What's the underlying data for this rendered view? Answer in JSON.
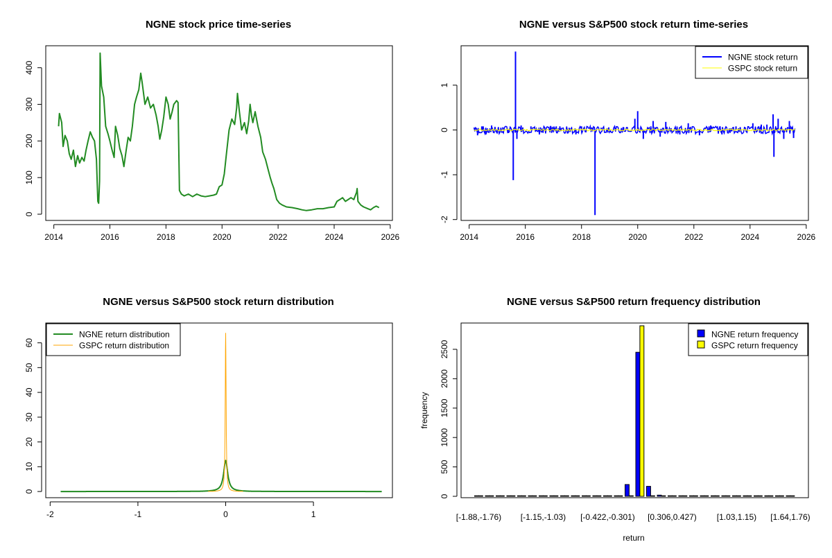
{
  "chart_data": [
    {
      "type": "line",
      "title": "NGNE stock price time-series",
      "xlabel": "",
      "ylabel": "",
      "xlim": [
        2014,
        2026
      ],
      "ylim": [
        0,
        450
      ],
      "x_ticks": [
        "2014",
        "2016",
        "2018",
        "2020",
        "2022",
        "2024",
        "2026"
      ],
      "y_ticks": [
        "0",
        "100",
        "200",
        "300",
        "400"
      ],
      "legend": null,
      "series": [
        {
          "color": "#228B22",
          "points": [
            [
              2014.17,
              240
            ],
            [
              2014.2,
              275
            ],
            [
              2014.28,
              250
            ],
            [
              2014.33,
              185
            ],
            [
              2014.4,
              215
            ],
            [
              2014.48,
              200
            ],
            [
              2014.55,
              165
            ],
            [
              2014.62,
              150
            ],
            [
              2014.7,
              175
            ],
            [
              2014.77,
              130
            ],
            [
              2014.85,
              160
            ],
            [
              2014.92,
              140
            ],
            [
              2015.0,
              155
            ],
            [
              2015.08,
              145
            ],
            [
              2015.15,
              175
            ],
            [
              2015.22,
              200
            ],
            [
              2015.3,
              225
            ],
            [
              2015.38,
              210
            ],
            [
              2015.45,
              200
            ],
            [
              2015.52,
              150
            ],
            [
              2015.57,
              35
            ],
            [
              2015.6,
              30
            ],
            [
              2015.63,
              90
            ],
            [
              2015.65,
              440
            ],
            [
              2015.7,
              350
            ],
            [
              2015.78,
              320
            ],
            [
              2015.85,
              240
            ],
            [
              2015.93,
              220
            ],
            [
              2016.0,
              200
            ],
            [
              2016.08,
              175
            ],
            [
              2016.15,
              155
            ],
            [
              2016.2,
              240
            ],
            [
              2016.28,
              215
            ],
            [
              2016.35,
              180
            ],
            [
              2016.43,
              160
            ],
            [
              2016.5,
              130
            ],
            [
              2016.58,
              175
            ],
            [
              2016.65,
              210
            ],
            [
              2016.73,
              200
            ],
            [
              2016.8,
              240
            ],
            [
              2016.88,
              300
            ],
            [
              2016.95,
              320
            ],
            [
              2017.03,
              340
            ],
            [
              2017.1,
              385
            ],
            [
              2017.15,
              360
            ],
            [
              2017.25,
              300
            ],
            [
              2017.35,
              320
            ],
            [
              2017.45,
              290
            ],
            [
              2017.55,
              300
            ],
            [
              2017.65,
              270
            ],
            [
              2017.72,
              240
            ],
            [
              2017.78,
              205
            ],
            [
              2017.85,
              230
            ],
            [
              2017.92,
              265
            ],
            [
              2018.0,
              320
            ],
            [
              2018.08,
              300
            ],
            [
              2018.15,
              260
            ],
            [
              2018.22,
              280
            ],
            [
              2018.28,
              300
            ],
            [
              2018.38,
              310
            ],
            [
              2018.43,
              305
            ],
            [
              2018.48,
              65
            ],
            [
              2018.55,
              55
            ],
            [
              2018.65,
              50
            ],
            [
              2018.8,
              55
            ],
            [
              2018.95,
              48
            ],
            [
              2019.1,
              55
            ],
            [
              2019.25,
              50
            ],
            [
              2019.4,
              48
            ],
            [
              2019.55,
              50
            ],
            [
              2019.7,
              52
            ],
            [
              2019.8,
              55
            ],
            [
              2019.9,
              75
            ],
            [
              2020.0,
              80
            ],
            [
              2020.08,
              110
            ],
            [
              2020.15,
              160
            ],
            [
              2020.25,
              230
            ],
            [
              2020.35,
              260
            ],
            [
              2020.45,
              245
            ],
            [
              2020.52,
              290
            ],
            [
              2020.55,
              330
            ],
            [
              2020.62,
              280
            ],
            [
              2020.7,
              230
            ],
            [
              2020.8,
              250
            ],
            [
              2020.88,
              220
            ],
            [
              2020.95,
              255
            ],
            [
              2021.0,
              300
            ],
            [
              2021.05,
              270
            ],
            [
              2021.1,
              250
            ],
            [
              2021.18,
              280
            ],
            [
              2021.28,
              240
            ],
            [
              2021.38,
              210
            ],
            [
              2021.45,
              170
            ],
            [
              2021.55,
              150
            ],
            [
              2021.65,
              120
            ],
            [
              2021.72,
              100
            ],
            [
              2021.78,
              85
            ],
            [
              2021.85,
              70
            ],
            [
              2021.95,
              40
            ],
            [
              2022.05,
              30
            ],
            [
              2022.15,
              25
            ],
            [
              2022.3,
              20
            ],
            [
              2022.5,
              18
            ],
            [
              2022.7,
              15
            ],
            [
              2022.85,
              12
            ],
            [
              2023.0,
              10
            ],
            [
              2023.2,
              12
            ],
            [
              2023.4,
              15
            ],
            [
              2023.6,
              15
            ],
            [
              2023.8,
              18
            ],
            [
              2024.0,
              20
            ],
            [
              2024.1,
              35
            ],
            [
              2024.2,
              40
            ],
            [
              2024.3,
              45
            ],
            [
              2024.4,
              35
            ],
            [
              2024.5,
              40
            ],
            [
              2024.6,
              45
            ],
            [
              2024.7,
              40
            ],
            [
              2024.8,
              60
            ],
            [
              2024.82,
              70
            ],
            [
              2024.85,
              35
            ],
            [
              2024.95,
              25
            ],
            [
              2025.05,
              20
            ],
            [
              2025.2,
              15
            ],
            [
              2025.3,
              12
            ],
            [
              2025.4,
              18
            ],
            [
              2025.5,
              22
            ],
            [
              2025.6,
              18
            ]
          ]
        }
      ]
    },
    {
      "type": "line",
      "title": "NGNE versus S&P500 stock return time-series",
      "xlabel": "",
      "ylabel": "",
      "xlim": [
        2014,
        2026
      ],
      "ylim": [
        -2,
        1.8
      ],
      "x_ticks": [
        "2014",
        "2016",
        "2018",
        "2020",
        "2022",
        "2024",
        "2026"
      ],
      "y_ticks": [
        "-2",
        "-1",
        "0",
        "1"
      ],
      "legend": "top-right",
      "legend_entries": [
        "NGNE stock return",
        "GSPC stock return"
      ],
      "series": [
        {
          "name": "NGNE stock return",
          "color": "#0000FF",
          "spikes": [
            [
              2014.2,
              0.05
            ],
            [
              2014.3,
              -0.12
            ],
            [
              2014.45,
              0.08
            ],
            [
              2014.6,
              -0.1
            ],
            [
              2014.8,
              0.1
            ],
            [
              2015.0,
              -0.08
            ],
            [
              2015.2,
              0.06
            ],
            [
              2015.4,
              -0.07
            ],
            [
              2015.57,
              -1.12
            ],
            [
              2015.65,
              1.75
            ],
            [
              2015.7,
              -0.2
            ],
            [
              2015.85,
              0.1
            ],
            [
              2016.2,
              0.08
            ],
            [
              2016.5,
              -0.1
            ],
            [
              2016.9,
              0.09
            ],
            [
              2017.1,
              0.08
            ],
            [
              2017.5,
              -0.08
            ],
            [
              2017.8,
              -0.1
            ],
            [
              2018.0,
              0.08
            ],
            [
              2018.48,
              -1.9
            ],
            [
              2018.7,
              0.05
            ],
            [
              2019.5,
              0.06
            ],
            [
              2019.9,
              0.25
            ],
            [
              2020.0,
              0.42
            ],
            [
              2020.2,
              -0.2
            ],
            [
              2020.55,
              0.2
            ],
            [
              2020.8,
              -0.15
            ],
            [
              2021.0,
              0.18
            ],
            [
              2021.5,
              -0.1
            ],
            [
              2021.8,
              0.15
            ],
            [
              2022.2,
              -0.12
            ],
            [
              2022.6,
              0.1
            ],
            [
              2023.0,
              -0.1
            ],
            [
              2023.5,
              0.08
            ],
            [
              2024.1,
              0.15
            ],
            [
              2024.4,
              0.12
            ],
            [
              2024.6,
              0.12
            ],
            [
              2024.82,
              0.35
            ],
            [
              2024.85,
              -0.6
            ],
            [
              2025.0,
              0.25
            ],
            [
              2025.2,
              -0.2
            ],
            [
              2025.4,
              0.2
            ],
            [
              2025.55,
              -0.18
            ]
          ],
          "band": 0.06
        },
        {
          "name": "GSPC stock return",
          "color": "#FFFF00",
          "band": 0.02
        }
      ]
    },
    {
      "type": "line",
      "title": "NGNE versus S&P500 stock return distribution",
      "xlabel": "",
      "ylabel": "",
      "xlim": [
        -2.05,
        1.9
      ],
      "ylim": [
        -1,
        68
      ],
      "x_ticks": [
        "-2",
        "-1",
        "0",
        "1"
      ],
      "y_ticks": [
        "0",
        "10",
        "20",
        "30",
        "40",
        "50",
        "60"
      ],
      "legend": "top-left",
      "legend_entries": [
        "NGNE return distribution",
        "GSPC return distribution"
      ],
      "series": [
        {
          "name": "NGNE return distribution",
          "color": "#228B22",
          "density": {
            "center": 0.0,
            "peak": 12.5,
            "width": 0.028
          }
        },
        {
          "name": "GSPC return distribution",
          "color": "#FFA500",
          "density": {
            "center": 0.0,
            "peak": 64,
            "width": 0.006
          }
        }
      ]
    },
    {
      "type": "bar",
      "title": "NGNE versus S&P500 return frequency distribution",
      "xlabel": "return",
      "ylabel": "frequency",
      "ylim": [
        0,
        2900
      ],
      "y_ticks": [
        "0",
        "500",
        "1000",
        "1500",
        "2000",
        "2500"
      ],
      "x_tick_labels": [
        "[-1.88,-1.76)",
        "[-1.15,-1.03)",
        "[-0.422,-0.301)",
        "[0.306,0.427)",
        "[1.03,1.15)",
        "[1.64,1.76)"
      ],
      "x_tick_label_bins": [
        0,
        6,
        12,
        18,
        24,
        29
      ],
      "legend": "top-right",
      "legend_entries": [
        "NGNE return frequency",
        "GSPC return frequency"
      ],
      "bin_count": 30,
      "series": [
        {
          "name": "NGNE return frequency",
          "color": "#0000FF",
          "values": [
            1,
            0,
            0,
            0,
            0,
            0,
            0,
            0,
            0,
            0,
            0,
            0,
            0,
            5,
            200,
            2450,
            170,
            20,
            2,
            0,
            0,
            0,
            0,
            0,
            0,
            0,
            0,
            0,
            0,
            1
          ]
        },
        {
          "name": "GSPC return frequency",
          "color": "#FFFF00",
          "values": [
            0,
            0,
            0,
            0,
            0,
            0,
            0,
            0,
            0,
            0,
            0,
            0,
            0,
            0,
            0,
            2900,
            0,
            0,
            0,
            0,
            0,
            0,
            0,
            0,
            0,
            0,
            0,
            0,
            0,
            0
          ]
        }
      ]
    }
  ]
}
